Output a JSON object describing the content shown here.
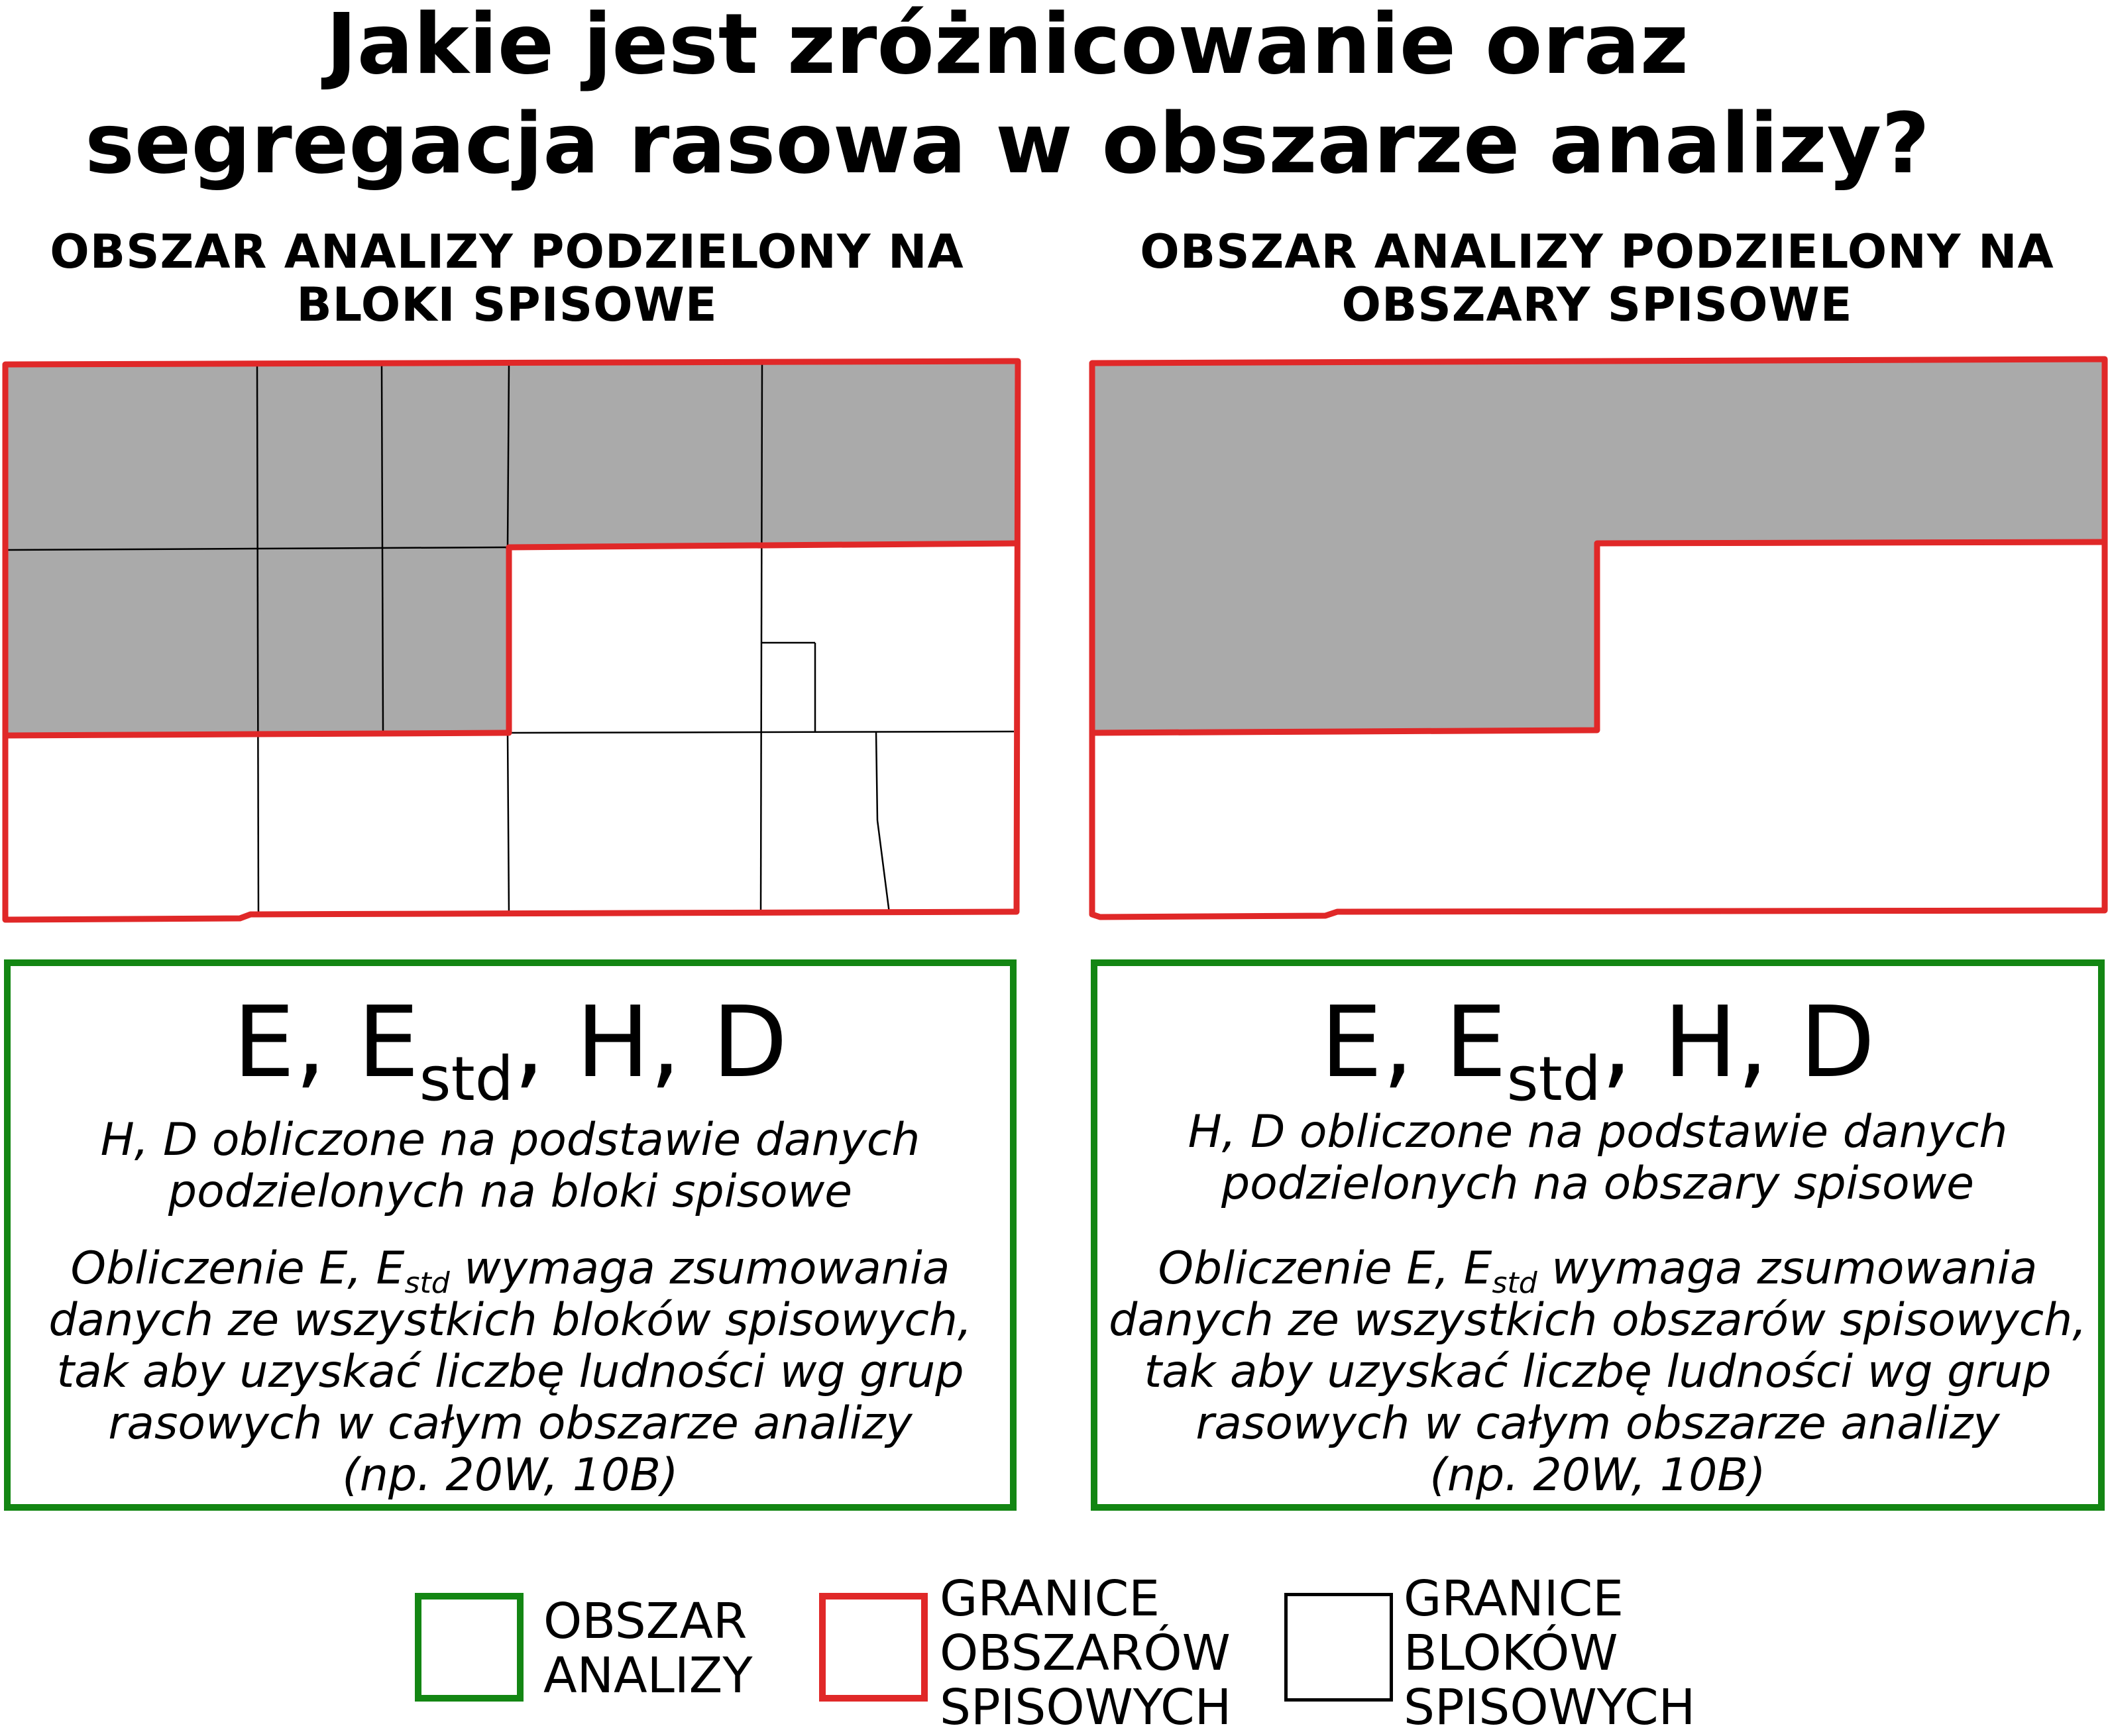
{
  "title": {
    "line1": "Jakie jest zróżnicowanie oraz",
    "line2": "segregacja rasowa w obszarze analizy?"
  },
  "colors": {
    "tract_border": "#e02828",
    "block_border": "#000000",
    "analysis_area_border": "#138613",
    "shaded_fill": "#aaaaaa"
  },
  "left_panel": {
    "heading_line1": "OBSZAR ANALIZY PODZIELONY NA",
    "heading_line2": "BLOKI SPISOWE",
    "formula_main": "E, E",
    "formula_sub": "std",
    "formula_rest": ", H, D",
    "note1_line1": "H, D obliczone na podstawie danych",
    "note1_line2": "podzielonych na bloki spisowe",
    "note2_line1_a": "Obliczenie E, E",
    "note2_line1_sub": "std",
    "note2_line1_b": " wymaga zsumowania",
    "note2_line2": "danych ze wszystkich bloków spisowych,",
    "note2_line3": "tak aby uzyskać liczbę ludności wg grup",
    "note2_line4": "rasowych w całym obszarze analizy",
    "note2_line5": "(np. 20W, 10B)"
  },
  "right_panel": {
    "heading_line1": "OBSZAR ANALIZY PODZIELONY NA",
    "heading_line2": "OBSZARY SPISOWE",
    "formula_main": "E, E",
    "formula_sub": "std",
    "formula_rest": ", H, D",
    "note1_line1": "H, D obliczone na podstawie danych",
    "note1_line2": "podzielonych na obszary spisowe",
    "note2_line1_a": "Obliczenie E, E",
    "note2_line1_sub": "std",
    "note2_line1_b": " wymaga zsumowania",
    "note2_line2": "danych ze wszystkich obszarów spisowych,",
    "note2_line3": "tak aby uzyskać liczbę ludności wg grup",
    "note2_line4": "rasowych w całym obszarze analizy",
    "note2_line5": "(np. 20W, 10B)"
  },
  "legend": {
    "analysis_area_line1": "OBSZAR",
    "analysis_area_line2": "ANALIZY",
    "tract_line1": "GRANICE",
    "tract_line2": "OBSZARÓW",
    "tract_line3": "SPISOWYCH",
    "block_line1": "GRANICE",
    "block_line2": "BLOKÓW",
    "block_line3": "SPISOWYCH"
  }
}
